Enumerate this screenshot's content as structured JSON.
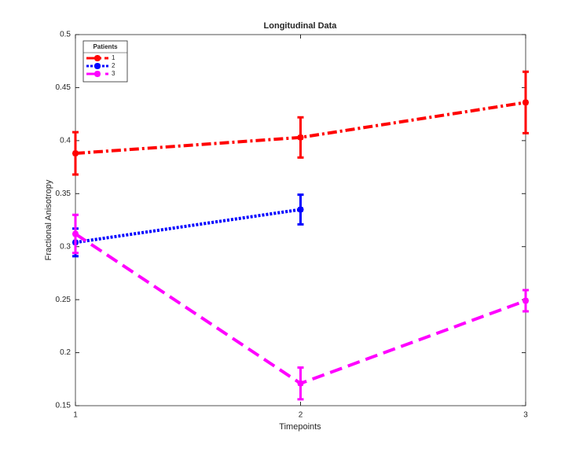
{
  "chart_data": {
    "type": "line",
    "title": "Longitudinal Data",
    "x_label": "Timepoints",
    "y_label": "Fractional Anisotropy",
    "x": [
      1,
      2,
      3
    ],
    "xlim": [
      1,
      3
    ],
    "xticks": [
      1,
      2,
      3
    ],
    "ylim": [
      0.15,
      0.5
    ],
    "yticks": [
      0.15,
      0.2,
      0.25,
      0.3,
      0.35,
      0.4,
      0.45,
      0.5
    ],
    "legend_title": "Patients",
    "legend_position": "upper-left",
    "series": [
      {
        "name": "1",
        "color": "#ff0000",
        "linestyle": "dashdot",
        "values": [
          0.388,
          0.403,
          0.436
        ],
        "errors": [
          0.02,
          0.019,
          0.029
        ]
      },
      {
        "name": "2",
        "color": "#0000ff",
        "linestyle": "dotted",
        "values": [
          0.304,
          0.335,
          null
        ],
        "errors": [
          0.013,
          0.014,
          null
        ]
      },
      {
        "name": "3",
        "color": "#ff00ff",
        "linestyle": "dashed",
        "values": [
          0.312,
          0.171,
          0.249
        ],
        "errors": [
          0.018,
          0.015,
          0.01
        ]
      }
    ]
  }
}
